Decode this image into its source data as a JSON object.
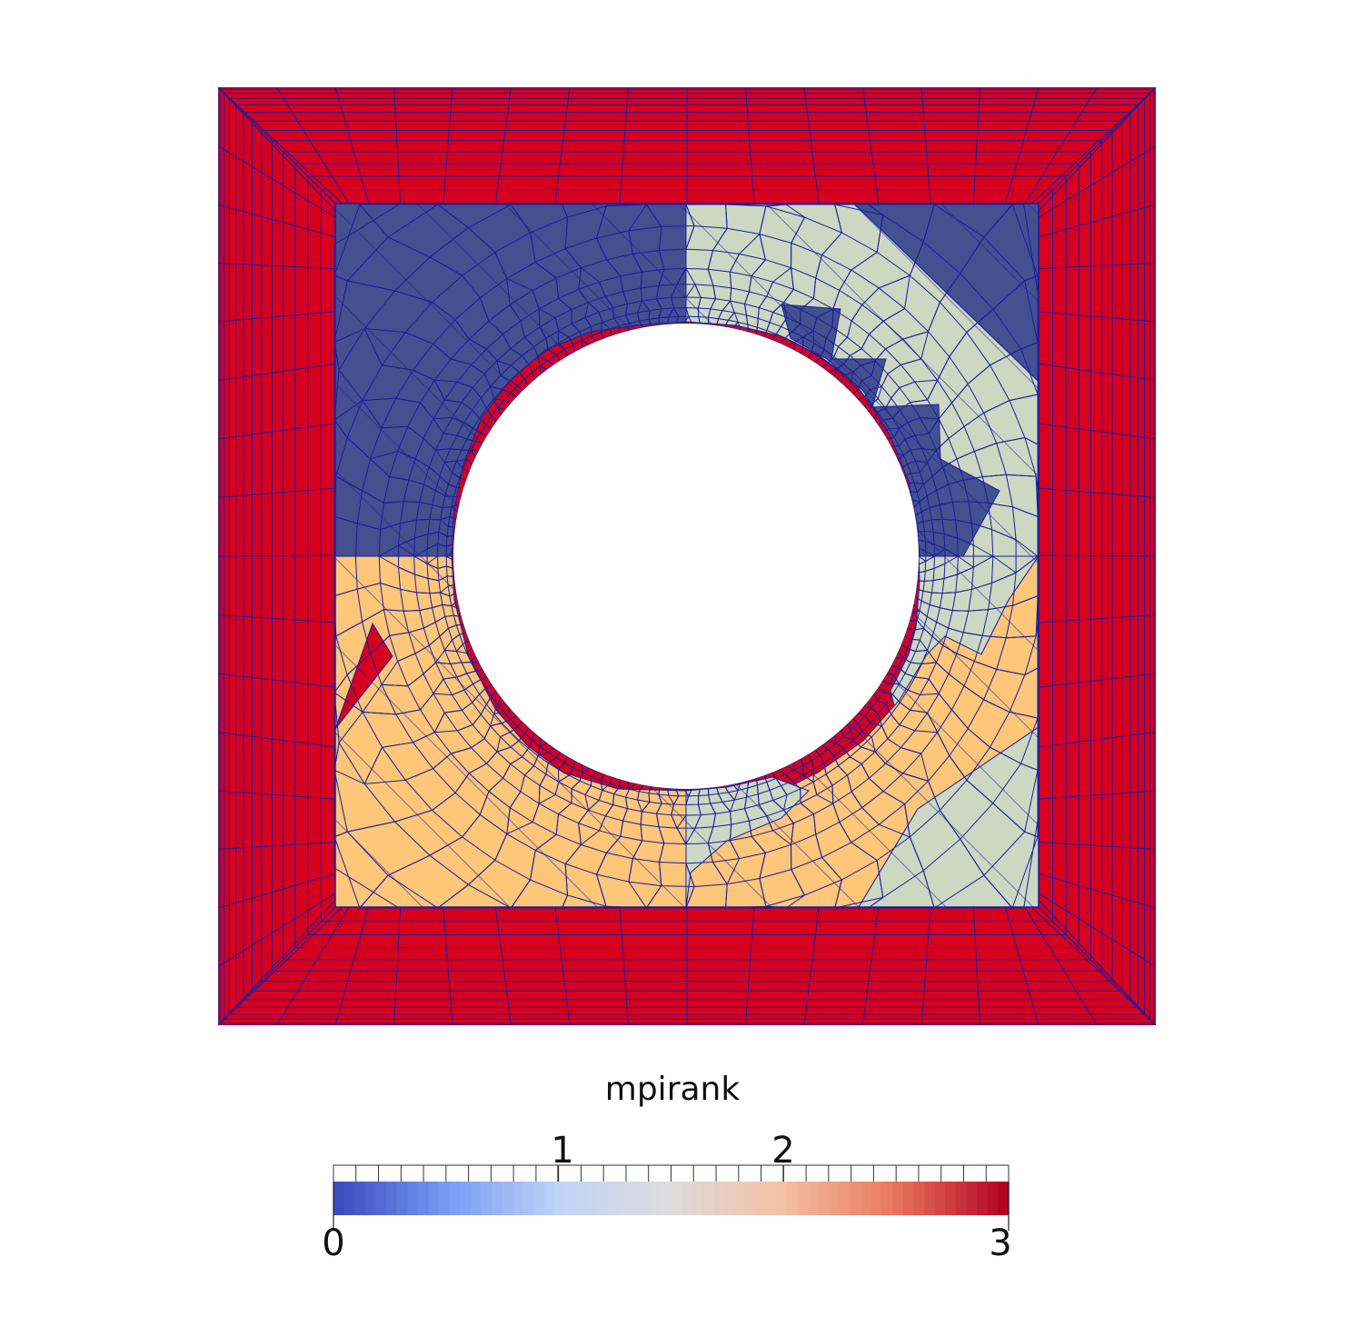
{
  "colorbar": {
    "title": "mpirank",
    "labels": [
      "0",
      "1",
      "2",
      "3"
    ],
    "range": [
      0,
      3
    ],
    "colors": [
      "#3b4cc0",
      "#7a9cf5",
      "#c0d4f5",
      "#dddcdc",
      "#f3c1a6",
      "#e8795e",
      "#b40426"
    ]
  },
  "mesh": {
    "rank_colors": {
      "rank0": "#44508f",
      "rank1": "#ccd8c1",
      "rank2": "#fdc679",
      "rank3": "#d5011f"
    },
    "edge_color": "#1a1f9a"
  }
}
